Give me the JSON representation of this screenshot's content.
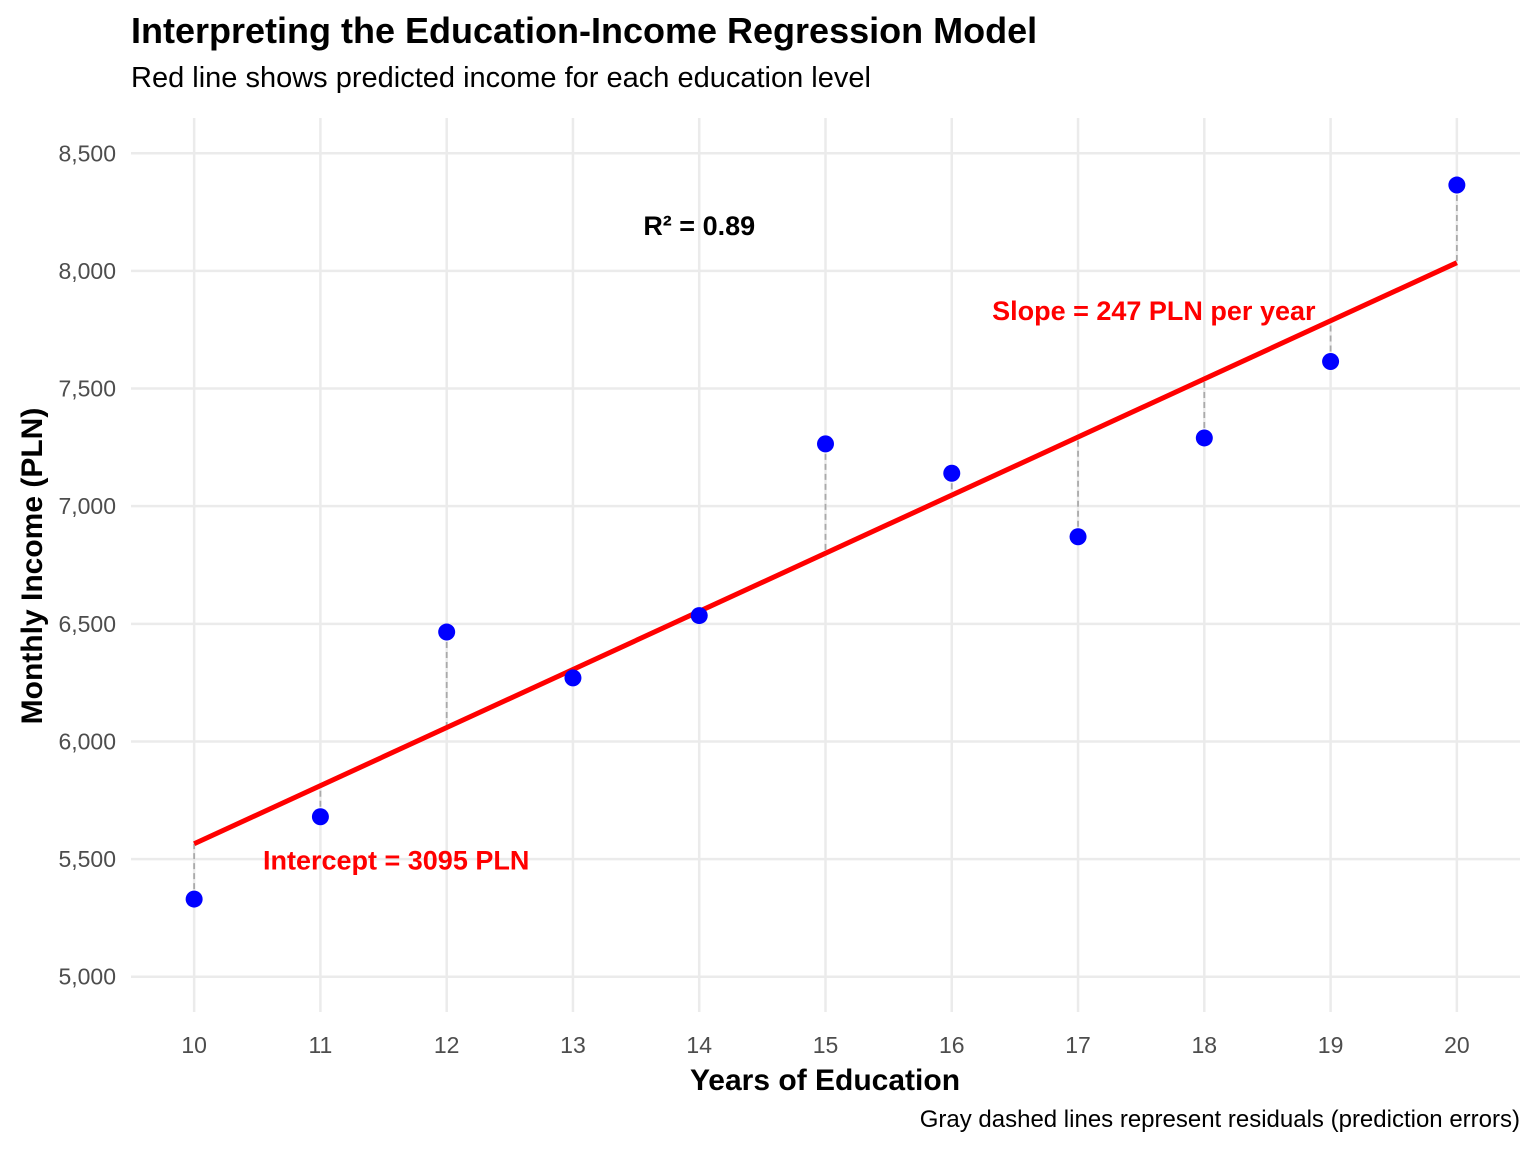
{
  "chart_data": {
    "type": "scatter",
    "title": "Interpreting the Education-Income Regression Model",
    "subtitle": "Red line shows predicted income for each education level",
    "caption": "Gray dashed lines represent residuals (prediction errors)",
    "xlabel": "Years of Education",
    "ylabel": "Monthly Income (PLN)",
    "xlim": [
      9.5,
      20.5
    ],
    "ylim": [
      4850,
      8650
    ],
    "x_ticks": [
      10,
      11,
      12,
      13,
      14,
      15,
      16,
      17,
      18,
      19,
      20
    ],
    "y_ticks": [
      5000,
      5500,
      6000,
      6500,
      7000,
      7500,
      8000,
      8500
    ],
    "y_tick_labels": [
      "5,000",
      "5,500",
      "6,000",
      "6,500",
      "7,000",
      "7,500",
      "8,000",
      "8,500"
    ],
    "grid": true,
    "points": {
      "x": [
        10,
        11,
        12,
        13,
        14,
        15,
        16,
        17,
        18,
        19,
        20
      ],
      "y": [
        5330,
        5680,
        6465,
        6270,
        6535,
        7265,
        7140,
        6870,
        7290,
        7615,
        8365
      ],
      "color": "#0000ff"
    },
    "regression_line": {
      "intercept": 3095,
      "slope": 247,
      "x_range": [
        10,
        20
      ],
      "color": "#ff0000"
    },
    "residual_color": "#aaaaaa",
    "annotations": [
      {
        "text": "R² = 0.89",
        "x": 14,
        "y": 8190,
        "color": "#000000"
      },
      {
        "text": "Slope = 247 PLN per year",
        "x": 17.6,
        "y": 7830,
        "color": "#ff0000"
      },
      {
        "text": "Intercept = 3095 PLN",
        "x": 11.6,
        "y": 5495,
        "color": "#ff0000"
      }
    ]
  }
}
